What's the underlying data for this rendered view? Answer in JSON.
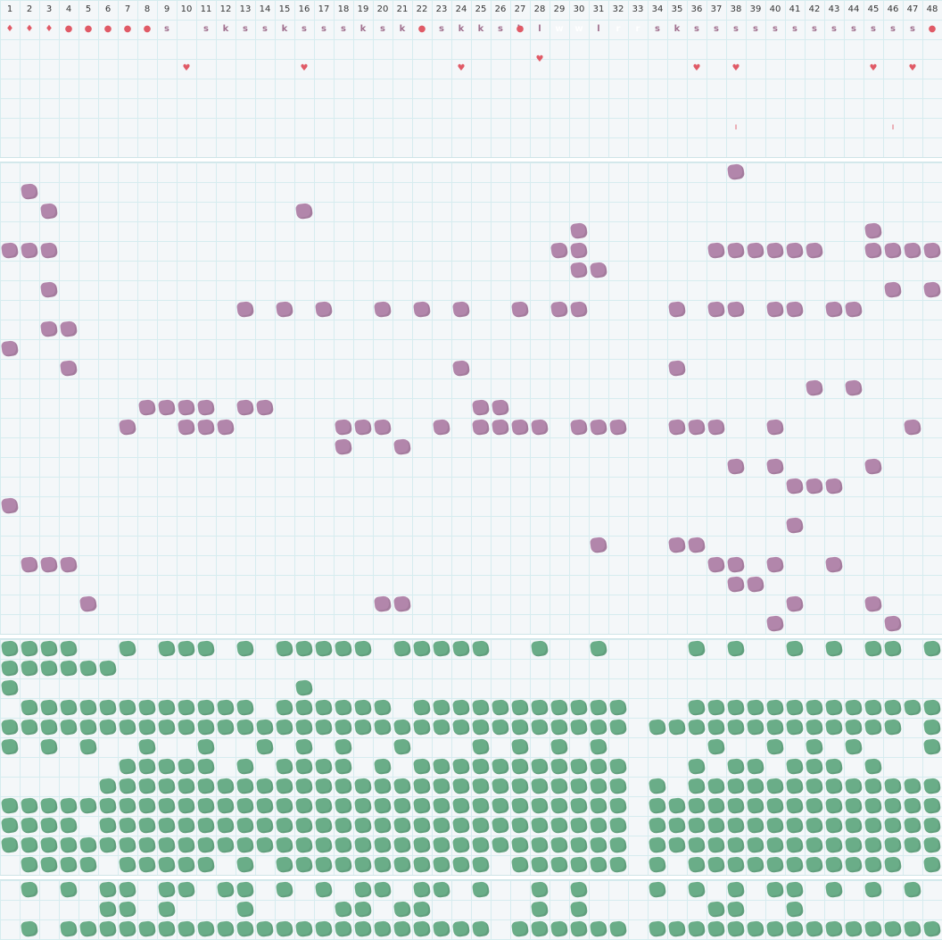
{
  "columns": [
    "1",
    "2",
    "3",
    "4",
    "5",
    "6",
    "7",
    "8",
    "9",
    "10",
    "11",
    "12",
    "13",
    "14",
    "15",
    "16",
    "17",
    "18",
    "19",
    "20",
    "21",
    "22",
    "23",
    "24",
    "25",
    "26",
    "27",
    "28",
    "29",
    "30",
    "31",
    "32",
    "33",
    "34",
    "35",
    "36",
    "37",
    "38",
    "39",
    "40",
    "41",
    "42",
    "43",
    "44",
    "45",
    "46",
    "47",
    "48"
  ],
  "header_tags": [
    "",
    "",
    "",
    "s",
    "",
    "",
    "",
    "",
    "s",
    "",
    "s",
    "k",
    "s",
    "s",
    "k",
    "s",
    "s",
    "s",
    "k",
    "s",
    "k",
    "s",
    "s",
    "k",
    "k",
    "s",
    "k",
    "l",
    "w",
    "w",
    "l",
    "r",
    "r",
    "s",
    "k",
    "s",
    "s",
    "s",
    "s",
    "s",
    "s",
    "s",
    "s",
    "s",
    "s",
    "s",
    "s",
    "s"
  ],
  "highlighted_tags": [
    29,
    30,
    32,
    33
  ],
  "colors": {
    "accent_tag": "#5cc14f",
    "purple": "#b286ab",
    "green": "#6aad88",
    "marker": "#e05a66",
    "grid": "#d6ecef"
  },
  "markers": [
    {
      "row": 2,
      "col": 1,
      "glyph": "♦"
    },
    {
      "row": 2,
      "col": 2,
      "glyph": "♦"
    },
    {
      "row": 2,
      "col": 3,
      "glyph": "♦"
    },
    {
      "row": 2,
      "col": 4,
      "glyph": "●"
    },
    {
      "row": 2,
      "col": 5,
      "glyph": "●"
    },
    {
      "row": 2,
      "col": 6,
      "glyph": "●"
    },
    {
      "row": 2,
      "col": 7,
      "glyph": "●"
    },
    {
      "row": 2,
      "col": 8,
      "glyph": "●"
    },
    {
      "row": 2,
      "col": 22,
      "glyph": "●"
    },
    {
      "row": 2,
      "col": 27,
      "glyph": "●"
    },
    {
      "row": 2,
      "col": 48,
      "glyph": "●"
    },
    {
      "row": 4,
      "col": 28,
      "glyph": "♥"
    },
    {
      "row": 4,
      "col": 10,
      "glyph": "♥"
    },
    {
      "row": 4,
      "col": 16,
      "glyph": "♥"
    },
    {
      "row": 4,
      "col": 24,
      "glyph": "♥"
    },
    {
      "row": 4,
      "col": 36,
      "glyph": "♥"
    },
    {
      "row": 4,
      "col": 38,
      "glyph": "♥"
    },
    {
      "row": 4,
      "col": 45,
      "glyph": "♥"
    },
    {
      "row": 4,
      "col": 47,
      "glyph": "♥"
    },
    {
      "row": 7,
      "col": 38,
      "glyph": "ı"
    },
    {
      "row": 7,
      "col": 46,
      "glyph": "ı"
    }
  ],
  "purple_rows": [
    [
      38
    ],
    [
      2
    ],
    [
      3,
      16
    ],
    [
      30,
      45
    ],
    [
      1,
      2,
      3,
      29,
      30,
      37,
      38,
      39,
      40,
      41,
      42,
      45,
      46,
      47,
      48
    ],
    [
      30,
      31
    ],
    [
      3,
      46,
      48
    ],
    [
      13,
      15,
      17,
      20,
      22,
      24,
      27,
      29,
      30,
      35,
      37,
      38,
      40,
      41,
      43,
      44
    ],
    [
      3,
      4
    ],
    [
      1
    ],
    [
      4,
      24,
      35
    ],
    [
      42,
      44
    ],
    [
      8,
      9,
      10,
      11,
      13,
      14,
      25,
      26
    ],
    [
      7,
      10,
      11,
      12,
      18,
      19,
      20,
      23,
      25,
      26,
      27,
      28,
      30,
      31,
      32,
      35,
      36,
      37,
      40,
      47
    ],
    [
      18,
      21
    ],
    [
      38,
      40,
      45
    ],
    [
      41,
      42,
      43
    ],
    [
      1
    ],
    [
      41
    ],
    [
      31,
      35,
      36
    ],
    [
      2,
      3,
      4,
      37,
      38,
      40,
      43
    ],
    [
      38,
      39
    ],
    [
      5,
      20,
      21,
      41,
      45
    ],
    [
      40,
      46
    ]
  ],
  "green_rows_a": [
    [
      1,
      2,
      3,
      4,
      7,
      9,
      10,
      11,
      13,
      15,
      16,
      17,
      18,
      19,
      21,
      22,
      23,
      24,
      25,
      28,
      31,
      36,
      38,
      41,
      43,
      45,
      46,
      48
    ],
    [
      1,
      2,
      3,
      4,
      5,
      6
    ],
    [
      1,
      16
    ],
    [
      2,
      3,
      4,
      5,
      6,
      7,
      8,
      9,
      10,
      11,
      12,
      13,
      15,
      16,
      17,
      18,
      19,
      20,
      22,
      23,
      24,
      25,
      26,
      27,
      28,
      29,
      30,
      31,
      32,
      36,
      37,
      38,
      39,
      40,
      41,
      42,
      43,
      44,
      45,
      46,
      47,
      48
    ],
    [
      1,
      2,
      3,
      4,
      5,
      6,
      7,
      8,
      9,
      10,
      11,
      12,
      13,
      14,
      15,
      16,
      17,
      18,
      19,
      20,
      21,
      22,
      23,
      24,
      25,
      26,
      27,
      28,
      29,
      30,
      31,
      32,
      34,
      35,
      36,
      37,
      38,
      39,
      40,
      41,
      42,
      43,
      44,
      45,
      46,
      48
    ],
    [
      1,
      3,
      5,
      8,
      11,
      14,
      16,
      18,
      21,
      25,
      27,
      29,
      31,
      37,
      40,
      42,
      44,
      48
    ],
    [
      7,
      8,
      9,
      10,
      11,
      13,
      15,
      16,
      17,
      18,
      20,
      22,
      23,
      24,
      25,
      26,
      27,
      28,
      29,
      30,
      31,
      32,
      36,
      38,
      39,
      41,
      42,
      43,
      45
    ],
    [
      6,
      7,
      8,
      9,
      10,
      11,
      12,
      13,
      14,
      15,
      16,
      17,
      18,
      19,
      20,
      21,
      22,
      23,
      24,
      25,
      26,
      27,
      28,
      29,
      30,
      31,
      32,
      34,
      36,
      37,
      38,
      39,
      40,
      41,
      42,
      43,
      44,
      45,
      46,
      47,
      48
    ],
    [
      1,
      2,
      3,
      4,
      5,
      6,
      7,
      8,
      9,
      10,
      11,
      12,
      13,
      14,
      15,
      16,
      17,
      18,
      19,
      20,
      21,
      22,
      23,
      24,
      25,
      26,
      27,
      28,
      29,
      30,
      31,
      32,
      34,
      35,
      36,
      37,
      38,
      39,
      40,
      41,
      42,
      43,
      44,
      45,
      46,
      47,
      48
    ],
    [
      1,
      2,
      3,
      4,
      6,
      7,
      8,
      9,
      10,
      11,
      12,
      13,
      14,
      15,
      16,
      17,
      18,
      19,
      20,
      21,
      22,
      23,
      24,
      25,
      26,
      27,
      28,
      29,
      30,
      31,
      32,
      34,
      35,
      36,
      37,
      38,
      39,
      40,
      41,
      42,
      43,
      44,
      45,
      46,
      47,
      48
    ],
    [
      1,
      2,
      3,
      4,
      5,
      6,
      7,
      8,
      9,
      10,
      11,
      12,
      13,
      14,
      15,
      16,
      17,
      18,
      19,
      20,
      21,
      22,
      23,
      24,
      25,
      26,
      27,
      28,
      29,
      30,
      31,
      32,
      34,
      35,
      36,
      37,
      38,
      39,
      40,
      41,
      42,
      43,
      44,
      45,
      46,
      47,
      48
    ],
    [
      2,
      3,
      4,
      5,
      7,
      8,
      9,
      10,
      11,
      13,
      15,
      16,
      17,
      18,
      19,
      20,
      21,
      22,
      23,
      24,
      25,
      27,
      28,
      29,
      30,
      31,
      32,
      34,
      36,
      37,
      38,
      39,
      40,
      41,
      42,
      43,
      44,
      45,
      46,
      48
    ]
  ],
  "green_rows_b": [
    [
      2,
      4,
      6,
      7,
      9,
      10,
      12,
      13,
      15,
      17,
      19,
      20,
      22,
      23,
      25,
      28,
      30,
      34,
      36,
      38,
      40,
      41,
      43,
      45,
      47
    ],
    [
      6,
      7,
      9,
      13,
      18,
      19,
      21,
      22,
      28,
      30,
      37,
      38,
      41
    ],
    [
      2,
      4,
      5,
      6,
      7,
      8,
      9,
      10,
      11,
      12,
      13,
      14,
      15,
      16,
      17,
      18,
      19,
      20,
      21,
      22,
      23,
      24,
      25,
      27,
      28,
      29,
      30,
      31,
      32,
      34,
      35,
      36,
      37,
      38,
      39,
      40,
      41,
      42,
      43,
      44,
      45,
      46,
      47,
      48
    ]
  ]
}
